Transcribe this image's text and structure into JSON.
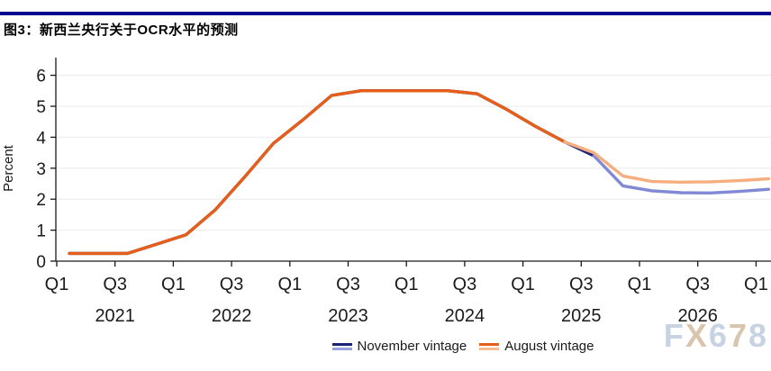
{
  "header": {
    "title": "图3：新西兰央行关于OCR水平的预测",
    "rule_color": "#00008B"
  },
  "watermark": {
    "text": "FX678",
    "letter_colors": [
      "#c7d2e2",
      "#d9c5ae",
      "#c7d2e2",
      "#d9c5ae",
      "#c7d2e2"
    ]
  },
  "legend": {
    "items": [
      {
        "label": "November vintage",
        "history_color": "#1B2377",
        "forecast_color": "#99A2DC"
      },
      {
        "label": "August vintage",
        "history_color": "#E55F1A",
        "forecast_color": "#F8BB92"
      }
    ]
  },
  "chart_data": {
    "type": "line",
    "title": "图3：新西兰央行关于OCR水平的预测",
    "xlabel": "",
    "ylabel": "Percent",
    "ylim": [
      0,
      6
    ],
    "y_ticks": [
      0,
      1,
      2,
      3,
      4,
      5,
      6
    ],
    "grid": true,
    "legend_position": "bottom",
    "axis_color": "#1a1a1a",
    "grid_color": "#ebebeb",
    "categories": [
      "Q1 2021",
      "Q2 2021",
      "Q3 2021",
      "Q4 2021",
      "Q1 2022",
      "Q2 2022",
      "Q3 2022",
      "Q4 2022",
      "Q1 2023",
      "Q2 2023",
      "Q3 2023",
      "Q4 2023",
      "Q1 2024",
      "Q2 2024",
      "Q3 2024",
      "Q4 2024",
      "Q1 2025",
      "Q2 2025",
      "Q3 2025",
      "Q4 2025",
      "Q1 2026",
      "Q2 2026",
      "Q3 2026",
      "Q4 2026",
      "Q1 2027"
    ],
    "x_tick_every": 2,
    "year_labels": [
      "2021",
      "2022",
      "2023",
      "2024",
      "2025",
      "2026"
    ],
    "series": [
      {
        "name": "November vintage",
        "history_color": "#1B2377",
        "forecast_color": "#8189D4",
        "forecast_start_index": 18,
        "values": [
          0.25,
          0.25,
          0.25,
          0.55,
          0.85,
          1.65,
          2.7,
          3.8,
          4.55,
          5.35,
          5.5,
          5.5,
          5.5,
          5.5,
          5.4,
          4.9,
          4.35,
          3.85,
          3.4,
          2.43,
          2.27,
          2.21,
          2.2,
          2.25,
          2.32
        ]
      },
      {
        "name": "August vintage",
        "history_color": "#E55F1A",
        "forecast_color": "#F7AE7E",
        "forecast_start_index": 17,
        "values": [
          0.25,
          0.25,
          0.25,
          0.55,
          0.85,
          1.65,
          2.7,
          3.8,
          4.55,
          5.35,
          5.5,
          5.5,
          5.5,
          5.5,
          5.4,
          4.9,
          4.35,
          3.85,
          3.5,
          2.75,
          2.57,
          2.55,
          2.56,
          2.6,
          2.66
        ]
      }
    ]
  }
}
